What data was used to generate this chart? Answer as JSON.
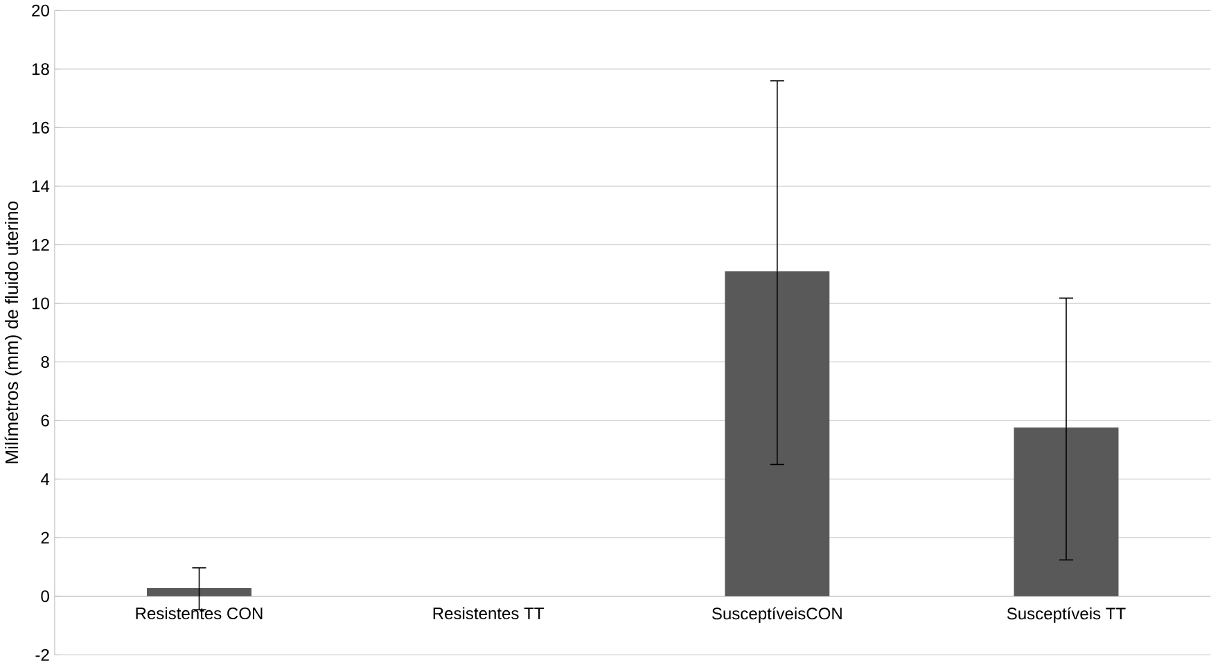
{
  "chart_data": {
    "type": "bar",
    "ylabel": "Milímetros (mm) de fluido uterino",
    "categories": [
      "Resistentes CON",
      "Resistentes TT",
      "SusceptíveisCON",
      "Susceptíveis TT"
    ],
    "values": [
      0.28,
      0,
      11.1,
      5.76
    ],
    "errors": [
      [
        -0.46,
        0.97
      ],
      null,
      [
        4.5,
        17.6
      ],
      [
        1.24,
        10.18
      ]
    ],
    "color": "#595959",
    "ylim": [
      -2,
      20
    ],
    "yticks": [
      -2,
      0,
      2,
      4,
      6,
      8,
      10,
      12,
      14,
      16,
      18,
      20
    ],
    "grid": "y"
  }
}
